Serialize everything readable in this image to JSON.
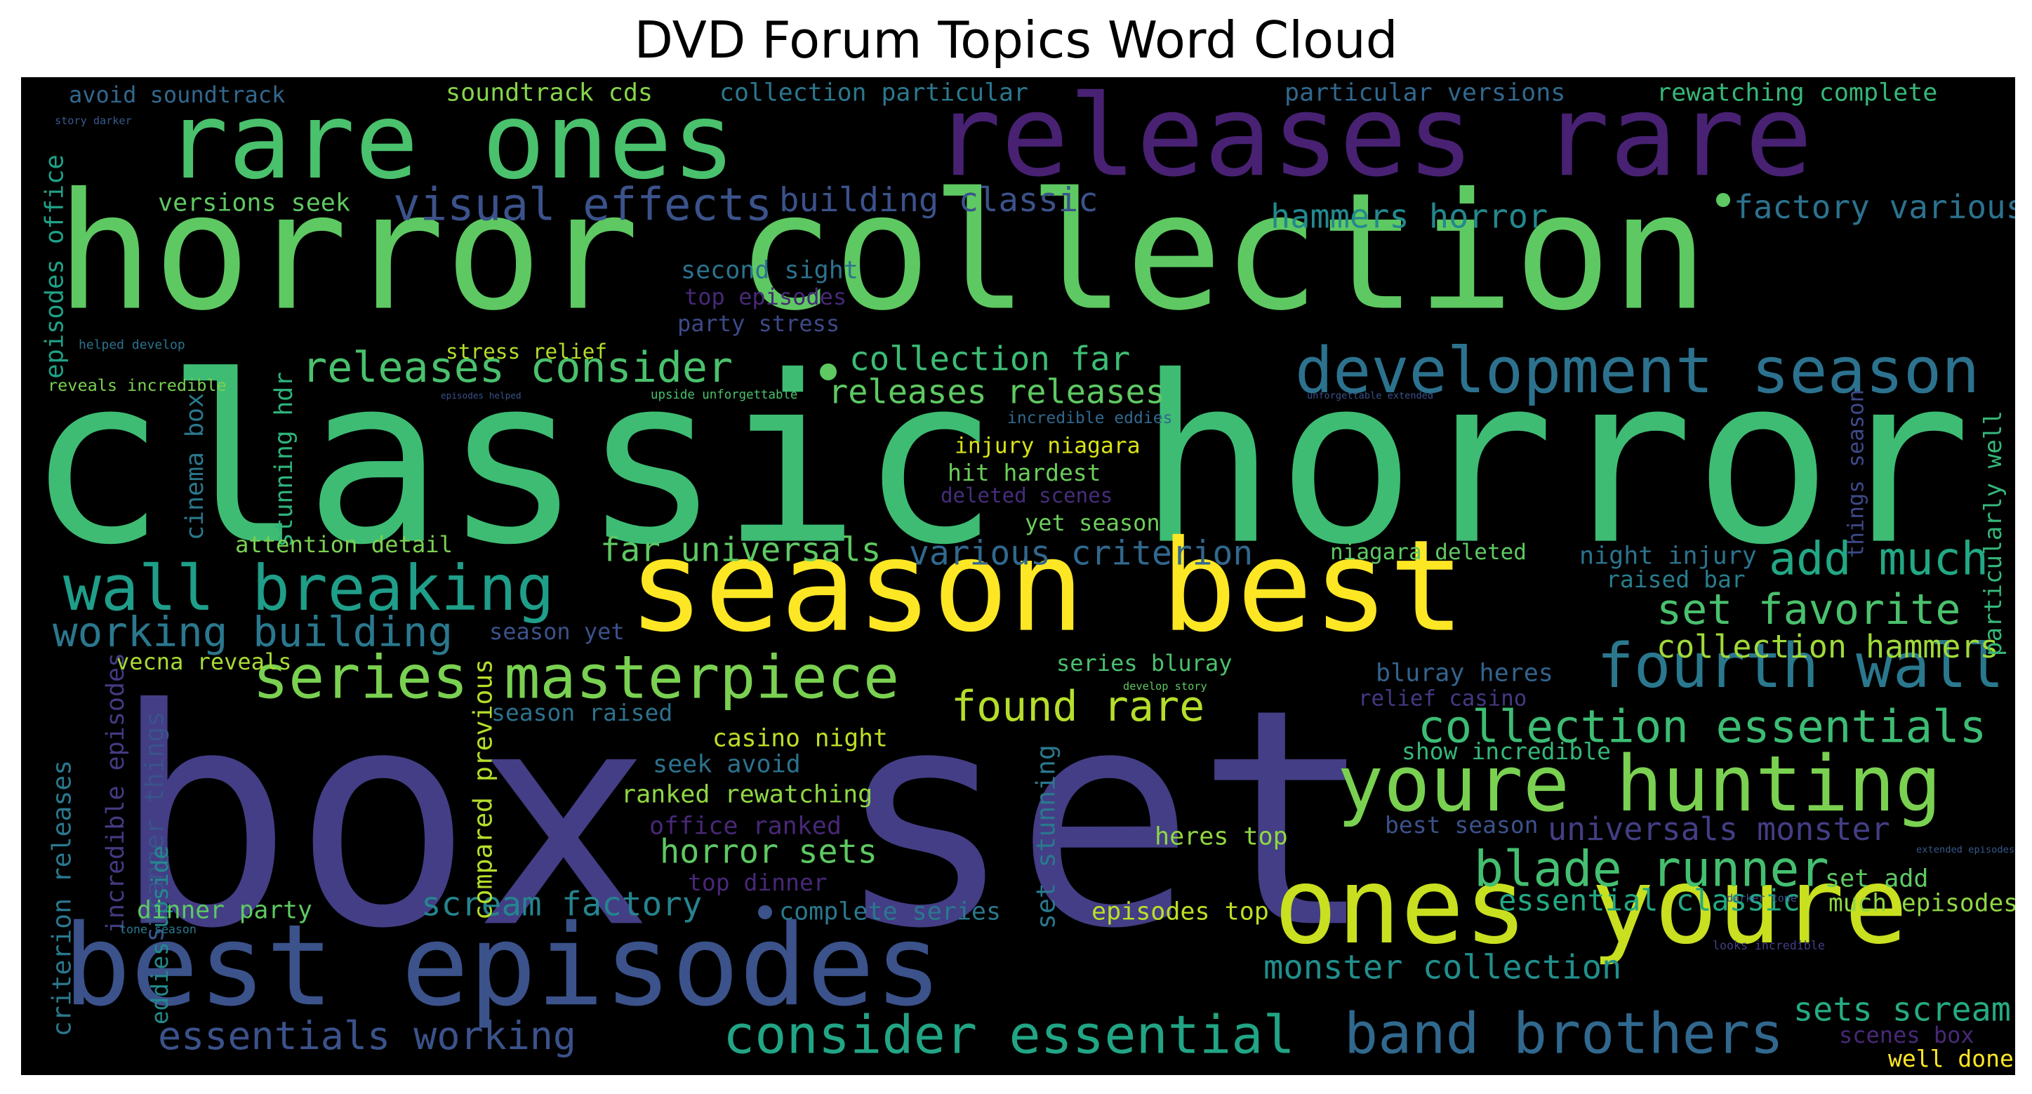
{
  "title": "DVD Forum Topics Word Cloud",
  "words": [
    {
      "text": "box set",
      "color": "#433e85"
    },
    {
      "text": "classic horror",
      "color": "#3ebc74"
    },
    {
      "text": "horror collection",
      "color": "#5ec962"
    },
    {
      "text": "releases rare",
      "color": "#482173"
    },
    {
      "text": "rare ones",
      "color": "#4ac16d"
    },
    {
      "text": "season best",
      "color": "#fde725"
    },
    {
      "text": "best episodes",
      "color": "#3b528b"
    },
    {
      "text": "ones youre",
      "color": "#c8e020"
    },
    {
      "text": "youre hunting",
      "color": "#7ad151"
    },
    {
      "text": "development season",
      "color": "#2c728e"
    },
    {
      "text": "fourth wall",
      "color": "#2a788e"
    },
    {
      "text": "series masterpiece",
      "color": "#7ad151"
    },
    {
      "text": "wall breaking",
      "color": "#1f9e89"
    },
    {
      "text": "band brothers",
      "color": "#31688e"
    },
    {
      "text": "consider essential",
      "color": "#21a585"
    },
    {
      "text": "collection essentials",
      "color": "#3dbc74"
    },
    {
      "text": "blade runner",
      "color": "#44bf70"
    },
    {
      "text": "visual effects",
      "color": "#3b528b"
    },
    {
      "text": "working building",
      "color": "#2a788e"
    },
    {
      "text": "found rare",
      "color": "#b5de2b"
    },
    {
      "text": "add much",
      "color": "#22a884"
    },
    {
      "text": "set favorite",
      "color": "#4ac16d"
    },
    {
      "text": "essentials working",
      "color": "#3b528b"
    },
    {
      "text": "releases consider",
      "color": "#4ac16d"
    },
    {
      "text": "building classic",
      "color": "#3b528b"
    },
    {
      "text": "factory various",
      "color": "#2c728e"
    },
    {
      "text": "collection far",
      "color": "#3dbc74"
    },
    {
      "text": "releases releases",
      "color": "#5ec962"
    },
    {
      "text": "hammers horror",
      "color": "#23888e"
    },
    {
      "text": "far universals",
      "color": "#5ec962"
    },
    {
      "text": "various criterion",
      "color": "#31688e"
    },
    {
      "text": "collection hammers",
      "color": "#a0da39"
    },
    {
      "text": "monster collection",
      "color": "#218f8d"
    },
    {
      "text": "scream factory",
      "color": "#25848e"
    },
    {
      "text": "horror sets",
      "color": "#5ec962"
    },
    {
      "text": "universals monster",
      "color": "#433e85"
    },
    {
      "text": "sets scream",
      "color": "#25ab82"
    },
    {
      "text": "essential classic",
      "color": "#22a884"
    },
    {
      "text": "criterion releases",
      "color": "#2a788e"
    },
    {
      "text": "avoid soundtrack",
      "color": "#31688e"
    },
    {
      "text": "soundtrack cds",
      "color": "#86d549"
    },
    {
      "text": "collection particular",
      "color": "#2a788e"
    },
    {
      "text": "particular versions",
      "color": "#31688e"
    },
    {
      "text": "rewatching complete",
      "color": "#35b779"
    },
    {
      "text": "story darker",
      "color": "#38598c"
    },
    {
      "text": "versions seek",
      "color": "#5ec962"
    },
    {
      "text": "second sight",
      "color": "#2c728e"
    },
    {
      "text": "top episodes",
      "color": "#482878"
    },
    {
      "text": "party stress",
      "color": "#3e4989"
    },
    {
      "text": "stress relief",
      "color": "#b5de2b"
    },
    {
      "text": "episodes office",
      "color": "#1fa187"
    },
    {
      "text": "helped develop",
      "color": "#2c728e"
    },
    {
      "text": "reveals incredible",
      "color": "#7ad151"
    },
    {
      "text": "episodes helped",
      "color": "#3b528b"
    },
    {
      "text": "upside unforgettable",
      "color": "#4ac16d"
    },
    {
      "text": "unforgettable extended",
      "color": "#3b528b"
    },
    {
      "text": "incredible eddies",
      "color": "#31688e"
    },
    {
      "text": "injury niagara",
      "color": "#d8e219"
    },
    {
      "text": "hit hardest",
      "color": "#6ccd5a"
    },
    {
      "text": "deleted scenes",
      "color": "#472d7b"
    },
    {
      "text": "yet season",
      "color": "#6ccd5a"
    },
    {
      "text": "cinema box",
      "color": "#2a788e"
    },
    {
      "text": "stunning hdr",
      "color": "#2fb47c"
    },
    {
      "text": "attention detail",
      "color": "#7ad151"
    },
    {
      "text": "niagara deleted",
      "color": "#5ec962"
    },
    {
      "text": "night injury",
      "color": "#2c728e"
    },
    {
      "text": "raised bar",
      "color": "#287d8e"
    },
    {
      "text": "things season",
      "color": "#3e4989"
    },
    {
      "text": "particularly well",
      "color": "#35b779"
    },
    {
      "text": "season yet",
      "color": "#3b528b"
    },
    {
      "text": "vecna reveals",
      "color": "#a8db34"
    },
    {
      "text": "incredible episodes",
      "color": "#443a83"
    },
    {
      "text": "stranger things",
      "color": "#3b528b"
    },
    {
      "text": "compared previous",
      "color": "#b5de2b"
    },
    {
      "text": "series bluray",
      "color": "#4ac16d"
    },
    {
      "text": "develop story",
      "color": "#5ec962"
    },
    {
      "text": "bluray heres",
      "color": "#33638d"
    },
    {
      "text": "relief casino",
      "color": "#443983"
    },
    {
      "text": "season raised",
      "color": "#2c728e"
    },
    {
      "text": "casino night",
      "color": "#bddf26"
    },
    {
      "text": "seek avoid",
      "color": "#2c728e"
    },
    {
      "text": "show incredible",
      "color": "#35b779"
    },
    {
      "text": "ranked rewatching",
      "color": "#8fd744"
    },
    {
      "text": "set stunning",
      "color": "#2a788e"
    },
    {
      "text": "office ranked",
      "color": "#482878"
    },
    {
      "text": "best season",
      "color": "#3b528b"
    },
    {
      "text": "eddies upside",
      "color": "#238a8d"
    },
    {
      "text": "heres top",
      "color": "#90d743"
    },
    {
      "text": "extended episodes",
      "color": "#38598c"
    },
    {
      "text": "top dinner",
      "color": "#482878"
    },
    {
      "text": "dinner party",
      "color": "#5ec962"
    },
    {
      "text": "complete series",
      "color": "#2a788e"
    },
    {
      "text": "episodes top",
      "color": "#bddf26"
    },
    {
      "text": "darker tone",
      "color": "#3b528b"
    },
    {
      "text": "set add",
      "color": "#5ec962"
    },
    {
      "text": "much episodes",
      "color": "#90d743"
    },
    {
      "text": "tone season",
      "color": "#2a788e"
    },
    {
      "text": "looks incredible",
      "color": "#433e85"
    },
    {
      "text": "scenes box",
      "color": "#482878"
    },
    {
      "text": "well done",
      "color": "#fde725"
    }
  ]
}
